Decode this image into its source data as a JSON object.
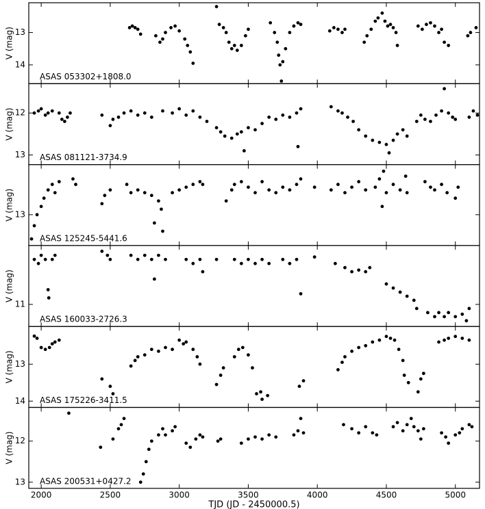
{
  "chart_data": [
    {
      "type": "scatter",
      "label": "ASAS 053302+1808.0",
      "ylabel": "V (mag)",
      "color": "#000000",
      "xlim": [
        1910,
        5175
      ],
      "xticks": [
        2000,
        2500,
        3000,
        3500,
        4000,
        4500,
        5000
      ],
      "ylim": [
        14.58,
        12.08
      ],
      "yticks": [
        13,
        14
      ],
      "x": [
        2640,
        2660,
        2680,
        2700,
        2720,
        2830,
        2860,
        2880,
        2900,
        2940,
        2970,
        3000,
        3040,
        3060,
        3080,
        3100,
        3270,
        3290,
        3320,
        3340,
        3360,
        3380,
        3400,
        3420,
        3450,
        3480,
        3500,
        3660,
        3690,
        3710,
        3720,
        3730,
        3740,
        3750,
        3770,
        3800,
        3830,
        3860,
        3880,
        4090,
        4120,
        4150,
        4180,
        4200,
        4340,
        4360,
        4390,
        4420,
        4440,
        4470,
        4490,
        4510,
        4530,
        4550,
        4570,
        4580,
        4730,
        4760,
        4790,
        4820,
        4850,
        4880,
        4900,
        4920,
        4950,
        5090,
        5110,
        5150
      ],
      "values": [
        12.85,
        12.8,
        12.85,
        12.9,
        13.05,
        13.1,
        13.3,
        13.2,
        13.0,
        12.85,
        12.8,
        12.95,
        13.2,
        13.4,
        13.6,
        13.95,
        12.2,
        12.75,
        12.85,
        13.0,
        13.3,
        13.5,
        13.4,
        13.55,
        13.4,
        13.1,
        12.9,
        12.7,
        13.0,
        13.3,
        13.7,
        14.0,
        14.5,
        13.9,
        13.5,
        13.0,
        12.8,
        12.7,
        12.75,
        12.95,
        12.85,
        12.9,
        13.0,
        12.9,
        13.3,
        13.1,
        12.9,
        12.65,
        12.55,
        12.4,
        12.65,
        12.8,
        12.75,
        12.85,
        13.0,
        13.4,
        12.8,
        12.9,
        12.75,
        12.7,
        12.8,
        13.0,
        12.9,
        13.3,
        13.4,
        13.1,
        13.0,
        12.85
      ]
    },
    {
      "type": "scatter",
      "label": "ASAS 081121-3734.9",
      "ylabel": "V (mag)",
      "color": "#000000",
      "xlim": [
        1910,
        5175
      ],
      "xticks": [
        2000,
        2500,
        3000,
        3500,
        4000,
        4500,
        5000
      ],
      "ylim": [
        13.23,
        11.3
      ],
      "yticks": [
        12,
        13
      ],
      "x": [
        1950,
        1980,
        2000,
        2030,
        2050,
        2080,
        2130,
        2150,
        2170,
        2190,
        2210,
        2440,
        2500,
        2520,
        2560,
        2600,
        2650,
        2700,
        2750,
        2800,
        2880,
        2950,
        3000,
        3050,
        3100,
        3150,
        3200,
        3270,
        3300,
        3330,
        3380,
        3420,
        3450,
        3470,
        3500,
        3550,
        3600,
        3650,
        3700,
        3750,
        3800,
        3850,
        3880,
        3860,
        4100,
        4150,
        4180,
        4220,
        4260,
        4300,
        4350,
        4400,
        4450,
        4500,
        4520,
        4550,
        4580,
        4620,
        4650,
        4720,
        4750,
        4780,
        4820,
        4860,
        4900,
        4920,
        4950,
        4980,
        5000,
        5100,
        5130,
        5160
      ],
      "values": [
        12.0,
        11.95,
        11.9,
        12.05,
        12.0,
        11.95,
        12.0,
        12.15,
        12.2,
        12.1,
        12.0,
        12.05,
        12.3,
        12.15,
        12.1,
        12.0,
        11.95,
        12.05,
        12.0,
        12.1,
        11.95,
        12.0,
        11.9,
        12.05,
        11.95,
        12.1,
        12.2,
        12.35,
        12.45,
        12.55,
        12.6,
        12.5,
        12.45,
        12.9,
        12.35,
        12.4,
        12.25,
        12.1,
        12.15,
        12.05,
        12.1,
        12.0,
        11.9,
        12.8,
        11.85,
        11.95,
        12.0,
        12.1,
        12.2,
        12.4,
        12.55,
        12.65,
        12.7,
        12.75,
        12.95,
        12.65,
        12.5,
        12.4,
        12.55,
        12.2,
        12.05,
        12.15,
        12.2,
        12.05,
        11.95,
        11.42,
        12.0,
        12.1,
        12.15,
        12.1,
        11.95,
        12.05
      ]
    },
    {
      "type": "scatter",
      "label": "ASAS 125245-5441.6",
      "ylabel": "V (mag)",
      "color": "#000000",
      "xlim": [
        1910,
        5175
      ],
      "xticks": [
        2000,
        2500,
        3000,
        3500,
        4000,
        4500,
        5000
      ],
      "ylim": [
        13.56,
        12.09
      ],
      "yticks": [
        13
      ],
      "x": [
        1930,
        1950,
        1970,
        2000,
        2020,
        2050,
        2080,
        2100,
        2130,
        2230,
        2250,
        2440,
        2460,
        2500,
        2620,
        2650,
        2700,
        2750,
        2800,
        2820,
        2850,
        2870,
        2880,
        2950,
        3000,
        3050,
        3100,
        3150,
        3170,
        3340,
        3380,
        3400,
        3450,
        3500,
        3550,
        3600,
        3650,
        3700,
        3750,
        3800,
        3850,
        3880,
        3980,
        4100,
        4150,
        4200,
        4250,
        4300,
        4350,
        4420,
        4450,
        4470,
        4480,
        4500,
        4550,
        4600,
        4640,
        4650,
        4780,
        4820,
        4850,
        4900,
        4940,
        5000,
        5020
      ],
      "values": [
        13.44,
        13.2,
        13.0,
        12.85,
        12.7,
        12.55,
        12.45,
        12.6,
        12.4,
        12.35,
        12.45,
        12.8,
        12.65,
        12.55,
        12.45,
        12.6,
        12.55,
        12.6,
        12.65,
        13.15,
        12.75,
        12.9,
        13.3,
        12.6,
        12.55,
        12.5,
        12.45,
        12.4,
        12.45,
        12.75,
        12.55,
        12.45,
        12.4,
        12.5,
        12.6,
        12.4,
        12.55,
        12.6,
        12.5,
        12.55,
        12.45,
        12.35,
        12.5,
        12.55,
        12.45,
        12.6,
        12.5,
        12.4,
        12.55,
        12.5,
        12.35,
        12.85,
        12.21,
        12.6,
        12.45,
        12.55,
        12.3,
        12.6,
        12.4,
        12.5,
        12.55,
        12.45,
        12.6,
        12.7,
        12.5
      ]
    },
    {
      "type": "scatter",
      "label": "ASAS 160033-2726.3",
      "ylabel": "V (mag)",
      "color": "#000000",
      "xlim": [
        1910,
        5175
      ],
      "xticks": [
        2000,
        2500,
        3000,
        3500,
        4000,
        4500,
        5000
      ],
      "ylim": [
        11.27,
        10.28
      ],
      "yticks": [
        11
      ],
      "x": [
        1950,
        1980,
        2000,
        2030,
        2050,
        2055,
        2080,
        2100,
        2440,
        2480,
        2500,
        2650,
        2700,
        2750,
        2800,
        2820,
        2850,
        2900,
        3050,
        3100,
        3150,
        3170,
        3270,
        3400,
        3450,
        3500,
        3550,
        3600,
        3650,
        3750,
        3800,
        3850,
        3880,
        3980,
        4130,
        4200,
        4250,
        4300,
        4350,
        4380,
        4500,
        4550,
        4600,
        4650,
        4700,
        4720,
        4800,
        4850,
        4880,
        4920,
        4950,
        5000,
        5050,
        5080,
        5100
      ],
      "values": [
        10.45,
        10.5,
        10.4,
        10.45,
        10.82,
        10.92,
        10.45,
        10.4,
        10.35,
        10.4,
        10.45,
        10.4,
        10.45,
        10.4,
        10.45,
        10.69,
        10.4,
        10.45,
        10.45,
        10.5,
        10.45,
        10.6,
        10.45,
        10.45,
        10.5,
        10.45,
        10.5,
        10.45,
        10.5,
        10.45,
        10.5,
        10.45,
        10.87,
        10.42,
        10.5,
        10.55,
        10.6,
        10.58,
        10.6,
        10.55,
        10.75,
        10.8,
        10.85,
        10.9,
        10.95,
        11.05,
        11.1,
        11.15,
        11.1,
        11.15,
        11.1,
        11.15,
        11.12,
        11.2,
        11.05
      ]
    },
    {
      "type": "scatter",
      "label": "ASAS 175226-3411.5",
      "ylabel": "V (mag)",
      "color": "#000000",
      "xlim": [
        1910,
        5175
      ],
      "xticks": [
        2000,
        2500,
        3000,
        3500,
        4000,
        4500,
        5000
      ],
      "ylim": [
        14.17,
        11.98
      ],
      "yticks": [
        13,
        14
      ],
      "x": [
        1950,
        1970,
        2000,
        2030,
        2060,
        2080,
        2100,
        2130,
        2440,
        2500,
        2520,
        2650,
        2680,
        2700,
        2750,
        2800,
        2850,
        2900,
        2950,
        3000,
        3030,
        3050,
        3100,
        3130,
        3150,
        3270,
        3300,
        3320,
        3400,
        3430,
        3460,
        3500,
        3530,
        3560,
        3590,
        3600,
        3640,
        3870,
        3900,
        4150,
        4180,
        4200,
        4250,
        4300,
        4350,
        4400,
        4450,
        4500,
        4530,
        4560,
        4590,
        4620,
        4630,
        4660,
        4730,
        4750,
        4770,
        4880,
        4920,
        4950,
        5000,
        5050,
        5100
      ],
      "values": [
        12.24,
        12.3,
        12.55,
        12.6,
        12.55,
        12.45,
        12.4,
        12.35,
        13.4,
        13.6,
        13.8,
        13.05,
        12.9,
        12.8,
        12.75,
        12.6,
        12.65,
        12.55,
        12.6,
        12.35,
        12.45,
        12.4,
        12.6,
        12.8,
        13.0,
        13.55,
        13.3,
        13.1,
        12.8,
        12.6,
        12.55,
        12.75,
        13.1,
        13.8,
        13.75,
        13.95,
        13.85,
        13.6,
        13.45,
        13.15,
        12.95,
        12.8,
        12.65,
        12.55,
        12.5,
        12.4,
        12.35,
        12.25,
        12.3,
        12.35,
        12.6,
        12.9,
        13.3,
        13.5,
        13.75,
        13.4,
        13.25,
        12.4,
        12.35,
        12.3,
        12.25,
        12.3,
        12.35
      ]
    },
    {
      "type": "scatter",
      "label": "ASAS 200531+0427.2",
      "ylabel": "V (mag)",
      "xlabel": "TJD (JD - 2450000.5)",
      "color": "#000000",
      "xlim": [
        1910,
        5175
      ],
      "xticks": [
        2000,
        2500,
        3000,
        3500,
        4000,
        4500,
        5000
      ],
      "ylim": [
        13.15,
        11.18
      ],
      "yticks": [
        12,
        13
      ],
      "x": [
        2200,
        2430,
        2520,
        2560,
        2580,
        2600,
        2720,
        2740,
        2760,
        2780,
        2800,
        2850,
        2880,
        2900,
        2950,
        2970,
        3050,
        3080,
        3120,
        3150,
        3170,
        3280,
        3300,
        3450,
        3500,
        3550,
        3600,
        3650,
        3700,
        3830,
        3860,
        3880,
        3900,
        4190,
        4250,
        4300,
        4350,
        4400,
        4430,
        4550,
        4580,
        4620,
        4650,
        4680,
        4700,
        4730,
        4750,
        4770,
        4900,
        4930,
        4950,
        5000,
        5030,
        5050,
        5100,
        5120
      ],
      "values": [
        11.32,
        12.15,
        11.95,
        11.7,
        11.6,
        11.45,
        13.0,
        12.8,
        12.5,
        12.2,
        12.0,
        11.85,
        11.7,
        11.85,
        11.75,
        11.65,
        12.05,
        12.15,
        11.95,
        11.85,
        11.9,
        12.0,
        11.95,
        12.05,
        11.95,
        11.9,
        11.95,
        11.85,
        11.9,
        11.85,
        11.75,
        11.45,
        11.8,
        11.6,
        11.7,
        11.8,
        11.65,
        11.8,
        11.85,
        11.65,
        11.55,
        11.75,
        11.6,
        11.45,
        11.65,
        11.75,
        11.95,
        11.7,
        11.8,
        11.9,
        12.05,
        11.85,
        11.8,
        11.7,
        11.6,
        11.65
      ]
    }
  ]
}
